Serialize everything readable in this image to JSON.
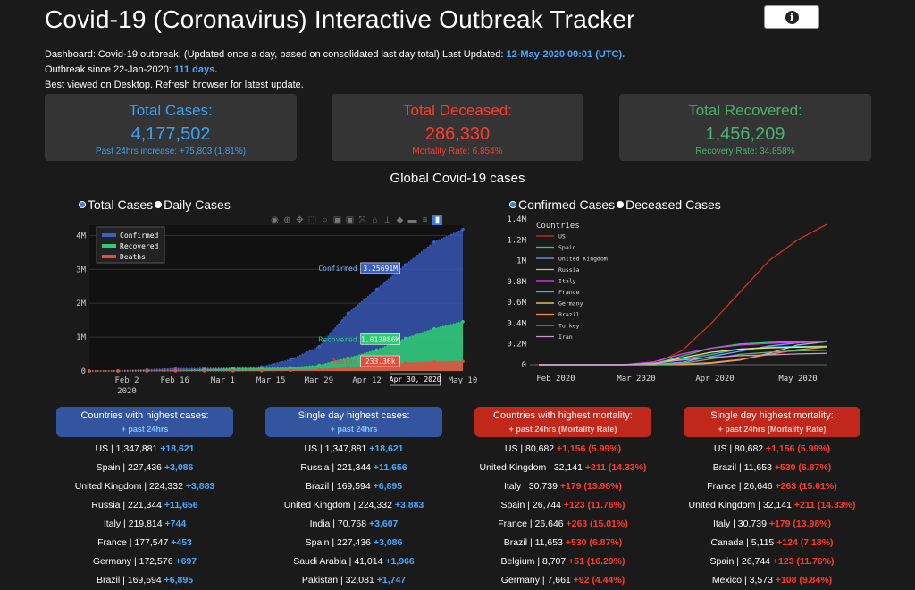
{
  "header": {
    "title": "Covid-19 (Coronavirus) Interactive Outbreak Tracker",
    "info_icon": "info-icon",
    "line1_prefix": "Dashboard: Covid-19 outbreak. (Updated once a day, based on consolidated last day total) Last Updated: ",
    "line1_value": "12-May-2020 00:01 (UTC).",
    "line2_prefix": "Outbreak since 22-Jan-2020: ",
    "line2_value": "111 days.",
    "line3": "Best viewed on Desktop. Refresh browser for latest update."
  },
  "cards": {
    "cases": {
      "label": "Total Cases:",
      "value": "4,177,502",
      "sub": "Past 24hrs increase: +75,803 (1.81%)"
    },
    "deceased": {
      "label": "Total Deceased:",
      "value": "286,330",
      "sub": "Mortality Rate: 6.854%"
    },
    "recovered": {
      "label": "Total Recovered:",
      "value": "1,456,209",
      "sub": "Recovery Rate: 34.858%"
    }
  },
  "section_title": "Global Covid-19 cases",
  "left_toggle": {
    "opt1": "Total Cases",
    "opt2": "Daily Cases",
    "selected": "Total Cases"
  },
  "right_toggle": {
    "opt1": "Confirmed Cases",
    "opt2": "Deceased Cases",
    "selected": "Confirmed Cases"
  },
  "colors": {
    "confirmed": "#3b5fc8",
    "recovered": "#2ecc71",
    "deaths": "#e74c3c",
    "accent": "#4aa8ff"
  },
  "chart_data": [
    {
      "type": "area",
      "x_ticks": [
        "Feb 2\n2020",
        "Feb 16",
        "Mar 1",
        "Mar 15",
        "Mar 29",
        "Apr 12",
        "Apr 26",
        "May 10"
      ],
      "y_ticks": [
        "0",
        "1M",
        "2M",
        "3M",
        "4M"
      ],
      "ylim": [
        0,
        4300000
      ],
      "legend": [
        "Confirmed",
        "Recovered",
        "Deaths"
      ],
      "series": [
        {
          "name": "Confirmed",
          "values": [
            555,
            9800,
            37000,
            71000,
            80000,
            88000,
            125000,
            330000,
            720000,
            1700000,
            2410000,
            3130000,
            3800000,
            4177502
          ]
        },
        {
          "name": "Recovered",
          "values": [
            28,
            180,
            2900,
            12000,
            39000,
            70000,
            83000,
            100000,
            170000,
            380000,
            620000,
            960000,
            1250000,
            1456209
          ]
        },
        {
          "name": "Deaths",
          "values": [
            17,
            210,
            810,
            2100,
            2900,
            3400,
            6500,
            17000,
            42000,
            108000,
            170000,
            230000,
            270000,
            286330
          ]
        }
      ],
      "hover_labels": {
        "confirmed": "Confirmed 3.25691M",
        "recovered": "Recovered 1.013886M",
        "deaths": "Deaths 233.36k",
        "date": "Apr 30, 2020"
      }
    },
    {
      "type": "line",
      "x_ticks": [
        "Feb 2020",
        "Mar 2020",
        "Apr 2020",
        "May 2020"
      ],
      "y_ticks": [
        "0",
        "0.2M",
        "0.4M",
        "0.6M",
        "0.8M",
        "1M",
        "1.2M",
        "1.4M"
      ],
      "ylim": [
        0,
        1400000
      ],
      "legend_title": "Countries",
      "series": [
        {
          "name": "US",
          "color": "#d0302a",
          "values": [
            1,
            8,
            15,
            70,
            4000,
            140000,
            400000,
            700000,
            1000000,
            1200000,
            1347881
          ]
        },
        {
          "name": "Spain",
          "color": "#2ecc71",
          "values": [
            0,
            0,
            2,
            100,
            9000,
            85000,
            160000,
            200000,
            215000,
            222000,
            227436
          ]
        },
        {
          "name": "United Kingdom",
          "color": "#7f9cff",
          "values": [
            0,
            2,
            9,
            40,
            1500,
            25000,
            80000,
            130000,
            180000,
            210000,
            224332
          ]
        },
        {
          "name": "Russia",
          "color": "#bbbbbb",
          "values": [
            0,
            2,
            2,
            3,
            60,
            1800,
            15000,
            45000,
            110000,
            190000,
            221344
          ]
        },
        {
          "name": "Italy",
          "color": "#e040fb",
          "values": [
            0,
            3,
            3,
            1700,
            28000,
            105000,
            160000,
            190000,
            205000,
            215000,
            219814
          ]
        },
        {
          "name": "France",
          "color": "#26c6da",
          "values": [
            5,
            6,
            12,
            200,
            6600,
            52000,
            100000,
            150000,
            168000,
            175000,
            177547
          ]
        },
        {
          "name": "Germany",
          "color": "#f5e663",
          "values": [
            4,
            16,
            16,
            150,
            7300,
            67000,
            120000,
            150000,
            162000,
            169000,
            172576
          ]
        },
        {
          "name": "Brazil",
          "color": "#ff8c3a",
          "values": [
            0,
            0,
            0,
            2,
            300,
            5700,
            21000,
            50000,
            100000,
            145000,
            169594
          ]
        },
        {
          "name": "Turkey",
          "color": "#66bb6a",
          "values": [
            0,
            0,
            0,
            0,
            100,
            13500,
            56000,
            100000,
            120000,
            133000,
            139771
          ]
        },
        {
          "name": "Iran",
          "color": "#ce93d8",
          "values": [
            0,
            0,
            43,
            1000,
            16000,
            45000,
            70000,
            87000,
            95000,
            104000,
            109286
          ]
        }
      ]
    }
  ],
  "tables": [
    {
      "title": "Countries with highest cases:",
      "subtitle": "+ past 24hrs",
      "style": "blue",
      "rows": [
        {
          "text": "US | 1,347,881",
          "inc": "+18,621"
        },
        {
          "text": "Spain | 227,436",
          "inc": "+3,086"
        },
        {
          "text": "United Kingdom | 224,332",
          "inc": "+3,883"
        },
        {
          "text": "Russia | 221,344",
          "inc": "+11,656"
        },
        {
          "text": "Italy | 219,814",
          "inc": "+744"
        },
        {
          "text": "France | 177,547",
          "inc": "+453"
        },
        {
          "text": "Germany | 172,576",
          "inc": "+697"
        },
        {
          "text": "Brazil | 169,594",
          "inc": "+6,895"
        }
      ]
    },
    {
      "title": "Single day highest cases:",
      "subtitle": "+ past 24hrs",
      "style": "blue",
      "rows": [
        {
          "text": "US | 1,347,881",
          "inc": "+18,621"
        },
        {
          "text": "Russia | 221,344",
          "inc": "+11,656"
        },
        {
          "text": "Brazil | 169,594",
          "inc": "+6,895"
        },
        {
          "text": "United Kingdom | 224,332",
          "inc": "+3,883"
        },
        {
          "text": "India | 70,768",
          "inc": "+3,607"
        },
        {
          "text": "Spain | 227,436",
          "inc": "+3,086"
        },
        {
          "text": "Saudi Arabia | 41,014",
          "inc": "+1,966"
        },
        {
          "text": "Pakistan | 32,081",
          "inc": "+1,747"
        }
      ]
    },
    {
      "title": "Countries with highest mortality:",
      "subtitle": "+ past 24hrs (Mortality Rate)",
      "style": "red",
      "rows": [
        {
          "text": "US | 80,682",
          "inc": "+1,156  (5.99%)"
        },
        {
          "text": "United Kingdom | 32,141",
          "inc": "+211  (14.33%)"
        },
        {
          "text": "Italy | 30,739",
          "inc": "+179  (13.98%)"
        },
        {
          "text": "Spain | 26,744",
          "inc": "+123  (11.76%)"
        },
        {
          "text": "France | 26,646",
          "inc": "+263  (15.01%)"
        },
        {
          "text": "Brazil | 11,653",
          "inc": "+530  (6.87%)"
        },
        {
          "text": "Belgium | 8,707",
          "inc": "+51  (16.29%)"
        },
        {
          "text": "Germany | 7,661",
          "inc": "+92  (4.44%)"
        }
      ]
    },
    {
      "title": "Single day highest mortality:",
      "subtitle": "+ past 24hrs (Mortality Rate)",
      "style": "red",
      "rows": [
        {
          "text": "US | 80,682",
          "inc": "+1,156  (5.99%)"
        },
        {
          "text": "Brazil | 11,653",
          "inc": "+530  (6.87%)"
        },
        {
          "text": "France | 26,646",
          "inc": "+263  (15.01%)"
        },
        {
          "text": "United Kingdom | 32,141",
          "inc": "+211  (14.33%)"
        },
        {
          "text": "Italy | 30,739",
          "inc": "+179  (13.98%)"
        },
        {
          "text": "Canada | 5,115",
          "inc": "+124  (7.18%)"
        },
        {
          "text": "Spain | 26,744",
          "inc": "+123  (11.76%)"
        },
        {
          "text": "Mexico | 3,573",
          "inc": "+108  (9.84%)"
        }
      ]
    }
  ]
}
